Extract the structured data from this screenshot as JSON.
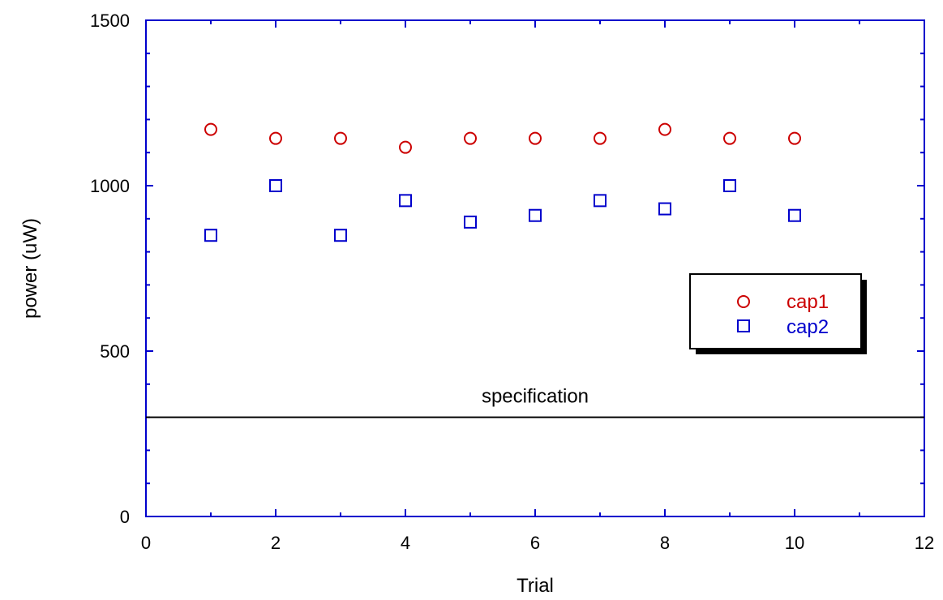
{
  "chart_data": {
    "type": "scatter",
    "title": "",
    "xlabel": "Trial",
    "ylabel": "power (uW)",
    "xlim": [
      0,
      12
    ],
    "ylim": [
      0,
      1500
    ],
    "x_ticks": [
      "0",
      "2",
      "4",
      "6",
      "8",
      "10",
      "12"
    ],
    "y_ticks": [
      "0",
      "500",
      "1000",
      "1500"
    ],
    "grid": false,
    "legend_position": "right",
    "series": [
      {
        "name": "cap1",
        "marker": "circle",
        "color": "#cc0000",
        "x": [
          1,
          2,
          3,
          4,
          5,
          6,
          7,
          8,
          9,
          10
        ],
        "y": [
          1170,
          1143,
          1143,
          1116,
          1143,
          1143,
          1143,
          1170,
          1143,
          1143
        ]
      },
      {
        "name": "cap2",
        "marker": "square",
        "color": "#0000cc",
        "x": [
          1,
          2,
          3,
          4,
          5,
          6,
          7,
          8,
          9,
          10
        ],
        "y": [
          850,
          1000,
          850,
          955,
          890,
          910,
          955,
          930,
          1000,
          910
        ]
      }
    ],
    "reference_line": {
      "y": 300,
      "label": "specification"
    },
    "axis_color": "#0000cc"
  }
}
